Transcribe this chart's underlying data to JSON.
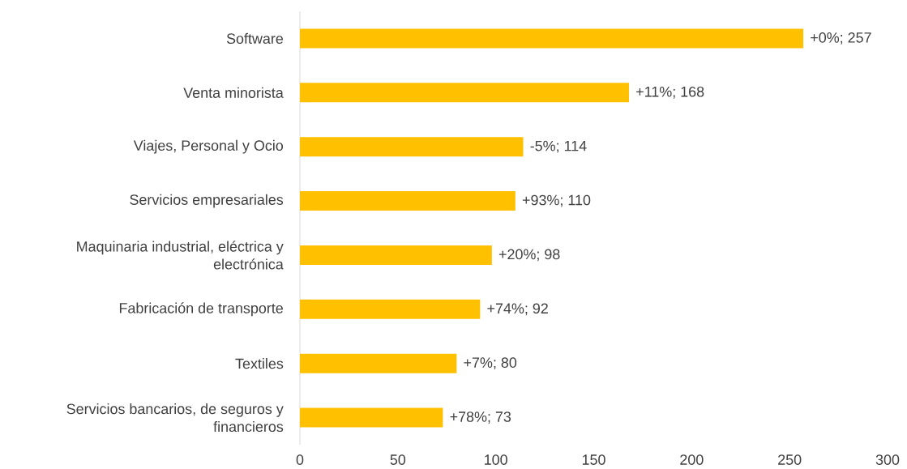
{
  "chart_data": {
    "type": "bar",
    "orientation": "horizontal",
    "categories": [
      "Software",
      "Venta minorista",
      "Viajes, Personal y Ocio",
      "Servicios empresariales",
      "Maquinaria industrial, eléctrica y electrónica",
      "Fabricación de transporte",
      "Textiles",
      "Servicios bancarios, de seguros y financieros"
    ],
    "values": [
      257,
      168,
      114,
      110,
      98,
      92,
      80,
      73
    ],
    "value_labels": [
      "+0%; 257",
      "+11%; 168",
      "-5%; 114",
      "+93%; 110",
      "+20%; 98",
      "+74%; 92",
      "+7%; 80",
      "+78%; 73"
    ],
    "color": "#ffc000",
    "xlim": [
      0,
      300
    ],
    "xticks": [
      0,
      50,
      100,
      150,
      200,
      250,
      300
    ],
    "grid": false
  }
}
